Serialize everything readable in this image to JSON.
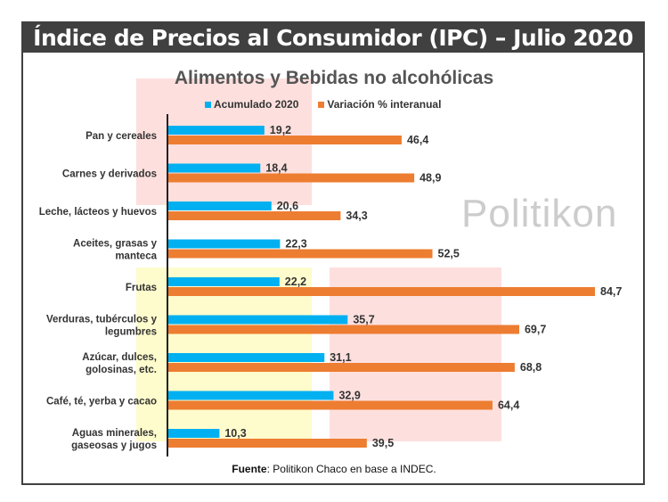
{
  "header": {
    "title": "Índice de Precios al Consumidor (IPC) – Julio 2020"
  },
  "watermark": "Politikon",
  "chart_data": {
    "type": "bar",
    "orientation": "horizontal",
    "title": "Alimentos y Bebidas no alcohólicas",
    "categories": [
      "Pan y cereales",
      "Carnes y derivados",
      "Leche, lácteos y huevos",
      "Aceites, grasas y manteca",
      "Frutas",
      "Verduras, tubérculos y legumbres",
      "Azúcar, dulces, golosinas, etc.",
      "Café, té, yerba y cacao",
      "Aguas minerales, gaseosas y jugos"
    ],
    "category_lines": [
      [
        "Pan y cereales"
      ],
      [
        "Carnes y derivados"
      ],
      [
        "Leche, lácteos y huevos"
      ],
      [
        "Aceites, grasas y",
        "manteca"
      ],
      [
        "Frutas"
      ],
      [
        "Verduras, tubérculos y",
        "legumbres"
      ],
      [
        "Azúcar, dulces,",
        "golosinas, etc."
      ],
      [
        "Café, té, yerba y cacao"
      ],
      [
        "Aguas minerales,",
        "gaseosas y jugos"
      ]
    ],
    "series": [
      {
        "name": "Acumulado 2020",
        "color": "#00b0f0",
        "values": [
          19.2,
          18.4,
          20.6,
          22.3,
          22.2,
          35.7,
          31.1,
          32.9,
          10.3
        ],
        "labels": [
          "19,2",
          "18,4",
          "20,6",
          "22,3",
          "22,2",
          "35,7",
          "31,1",
          "32,9",
          "10,3"
        ]
      },
      {
        "name": "Variación % interanual",
        "color": "#ed7d31",
        "values": [
          46.4,
          48.9,
          34.3,
          52.5,
          84.7,
          69.7,
          68.8,
          64.4,
          39.5
        ],
        "labels": [
          "46,4",
          "48,9",
          "34,3",
          "52,5",
          "84,7",
          "69,7",
          "68,8",
          "64,4",
          "39,5"
        ]
      }
    ],
    "legend_position": "top",
    "grid": false,
    "xlim": [
      0,
      85
    ]
  },
  "source": {
    "bold": "Fuente",
    "text": ": Politikon Chaco en base a INDEC."
  }
}
